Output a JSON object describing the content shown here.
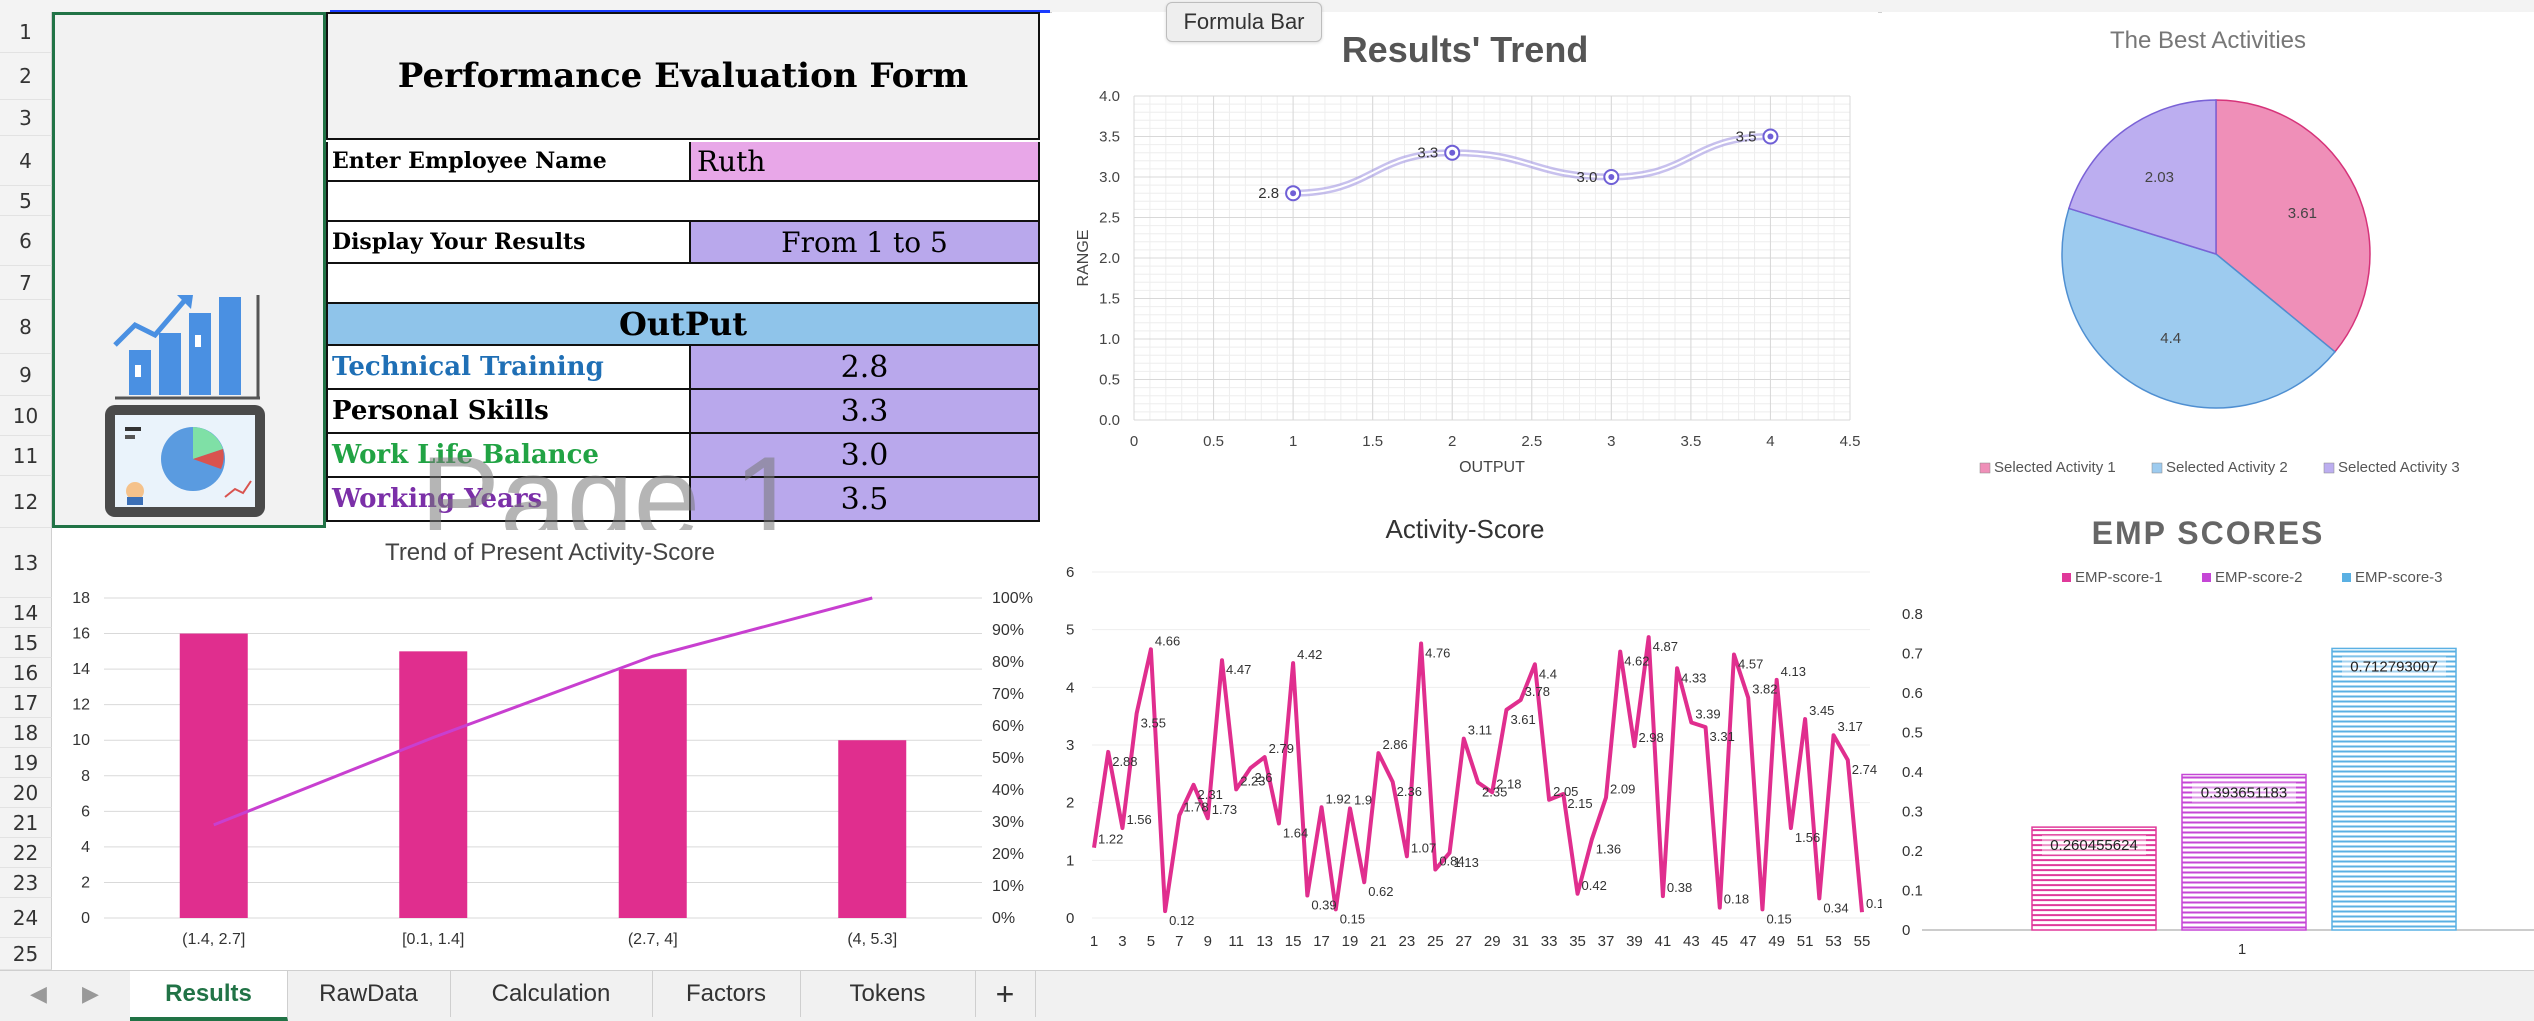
{
  "formula_bar_tooltip": "Formula Bar",
  "row_numbers": [
    "1",
    "2",
    "3",
    "4",
    "5",
    "6",
    "7",
    "8",
    "9",
    "10",
    "11",
    "12",
    "13",
    "14",
    "15",
    "16",
    "17",
    "18",
    "19",
    "20",
    "21",
    "22",
    "23",
    "24",
    "25"
  ],
  "form": {
    "title": "Performance Evaluation Form",
    "employee_label": "Enter Employee Name",
    "employee_value": "Ruth",
    "display_label": "Display Your Results",
    "display_value": "From 1 to 5",
    "output_header": "OutPut",
    "rows": [
      {
        "label": "Technical Training",
        "value": "2.8",
        "color": "#1f6fb5"
      },
      {
        "label": "Personal Skills",
        "value": "3.3",
        "color": "#000000"
      },
      {
        "label": "Work Life Balance",
        "value": "3.0",
        "color": "#21a344"
      },
      {
        "label": "Working Years",
        "value": "3.5",
        "color": "#7b2fa8"
      }
    ]
  },
  "watermark": "Page 1",
  "colors": {
    "excel_green": "#217346",
    "pink": "#e02e8e",
    "magenta": "#c83fd0",
    "lavender": "#b9a8ec",
    "light_blue": "#8fc4ea",
    "light_pink": "#e8a7e8"
  },
  "chart_data": [
    {
      "id": "results_trend",
      "type": "line",
      "title": "Results' Trend",
      "xlabel": "OUTPUT",
      "ylabel": "RANGE",
      "x": [
        1,
        2,
        3,
        4
      ],
      "values": [
        2.8,
        3.3,
        3.0,
        3.5
      ],
      "data_labels": [
        "2.8",
        "3.3",
        "3.0",
        "3.5"
      ],
      "xlim": [
        0,
        4.5
      ],
      "ylim": [
        0,
        4.0
      ],
      "x_ticks": [
        "0",
        "0.5",
        "1",
        "1.5",
        "2",
        "2.5",
        "3",
        "3.5",
        "4",
        "4.5"
      ],
      "y_ticks": [
        "0.0",
        "0.5",
        "1.0",
        "1.5",
        "2.0",
        "2.5",
        "3.0",
        "3.5",
        "4.0"
      ]
    },
    {
      "id": "best_activities",
      "type": "pie",
      "title": "The Best Activities",
      "categories": [
        "Selected Activity 1",
        "Selected Activity 2",
        "Selected Activity 3"
      ],
      "values": [
        3.61,
        4.4,
        2.03
      ],
      "data_labels": [
        "3.61",
        "4.4",
        "2.03"
      ],
      "colors": [
        "#ef8fb8",
        "#9dcbef",
        "#bcaef0"
      ]
    },
    {
      "id": "present_activity_score",
      "type": "bar",
      "title": "Trend of Present Activity-Score",
      "categories": [
        "(1.4, 2.7]",
        "[0.1, 1.4]",
        "(2.7, 4]",
        "(4, 5.3]"
      ],
      "values": [
        16,
        15,
        14,
        10
      ],
      "cumulative_percent": [
        29.1,
        56.4,
        81.8,
        100
      ],
      "ylim": [
        0,
        18
      ],
      "y_ticks": [
        "0",
        "2",
        "4",
        "6",
        "8",
        "10",
        "12",
        "14",
        "16",
        "18"
      ],
      "y2_ticks": [
        "0%",
        "10%",
        "20%",
        "30%",
        "40%",
        "50%",
        "60%",
        "70%",
        "80%",
        "90%",
        "100%"
      ]
    },
    {
      "id": "activity_score",
      "type": "line",
      "title": "Activity-Score",
      "ylim": [
        0,
        6
      ],
      "y_ticks": [
        "0",
        "1",
        "2",
        "3",
        "4",
        "5",
        "6"
      ],
      "x_ticks": [
        "1",
        "3",
        "5",
        "7",
        "9",
        "11",
        "13",
        "15",
        "17",
        "19",
        "21",
        "23",
        "25",
        "27",
        "29",
        "31",
        "33",
        "35",
        "37",
        "39",
        "41",
        "43",
        "45",
        "47",
        "49",
        "51",
        "53",
        "55"
      ],
      "values": [
        1.22,
        2.88,
        1.56,
        3.55,
        4.66,
        0.12,
        1.78,
        2.31,
        1.73,
        4.47,
        2.23,
        2.6,
        2.79,
        1.64,
        4.42,
        0.39,
        1.92,
        0.15,
        1.9,
        0.62,
        2.86,
        2.36,
        1.07,
        4.76,
        0.84,
        1.13,
        3.11,
        2.35,
        2.18,
        3.61,
        3.78,
        4.4,
        2.05,
        2.15,
        0.42,
        1.36,
        2.09,
        4.62,
        2.98,
        4.87,
        0.38,
        4.33,
        3.39,
        3.31,
        0.18,
        4.57,
        3.82,
        0.15,
        4.13,
        1.56,
        3.45,
        0.34,
        3.17,
        2.74,
        0.1
      ],
      "data_labels": [
        "1.22",
        "2.88",
        "1.56",
        "3.55",
        "4.66",
        "0.12",
        "1.78",
        "2.31",
        "1.73",
        "4.47",
        "2.23",
        "2.6",
        "2.79",
        "1.64",
        "4.42",
        "0.39",
        "1.92",
        "0.15",
        "1.9",
        "0.62",
        "2.86",
        "2.36",
        "1.07",
        "4.76",
        "0.84",
        "1.13",
        "3.11",
        "2.35",
        "2.18",
        "3.61",
        "3.78",
        "4.4",
        "2.05",
        "2.15",
        "0.42",
        "1.36",
        "2.09",
        "4.62",
        "2.98",
        "4.87",
        "0.38",
        "4.33",
        "3.39",
        "3.31",
        "0.18",
        "4.57",
        "3.82",
        "0.15",
        "4.13",
        "1.56",
        "3.45",
        "0.34",
        "3.17",
        "2.74",
        "0.1"
      ]
    },
    {
      "id": "emp_scores",
      "type": "bar",
      "title": "EMP SCORES",
      "categories": [
        "1"
      ],
      "series": [
        {
          "name": "EMP-score-1",
          "values": [
            0.260455624
          ],
          "label": "0.260455624",
          "color": "#e0399a"
        },
        {
          "name": "EMP-score-2",
          "values": [
            0.393651183
          ],
          "label": "0.393651183",
          "color": "#c546d6"
        },
        {
          "name": "EMP-score-3",
          "values": [
            0.712793007
          ],
          "label": "0.712793007",
          "color": "#5ab0e3"
        }
      ],
      "ylim": [
        0,
        0.8
      ],
      "y_ticks": [
        "0",
        "0.1",
        "0.2",
        "0.3",
        "0.4",
        "0.5",
        "0.6",
        "0.7",
        "0.8"
      ]
    }
  ],
  "sheet_tabs": [
    "Results",
    "RawData",
    "Calculation",
    "Factors",
    "Tokens"
  ],
  "add_sheet_label": "+",
  "icons": [
    "scroll-left-icon",
    "scroll-right-icon",
    "bar-chart-icon",
    "tablet-pie-icon"
  ]
}
